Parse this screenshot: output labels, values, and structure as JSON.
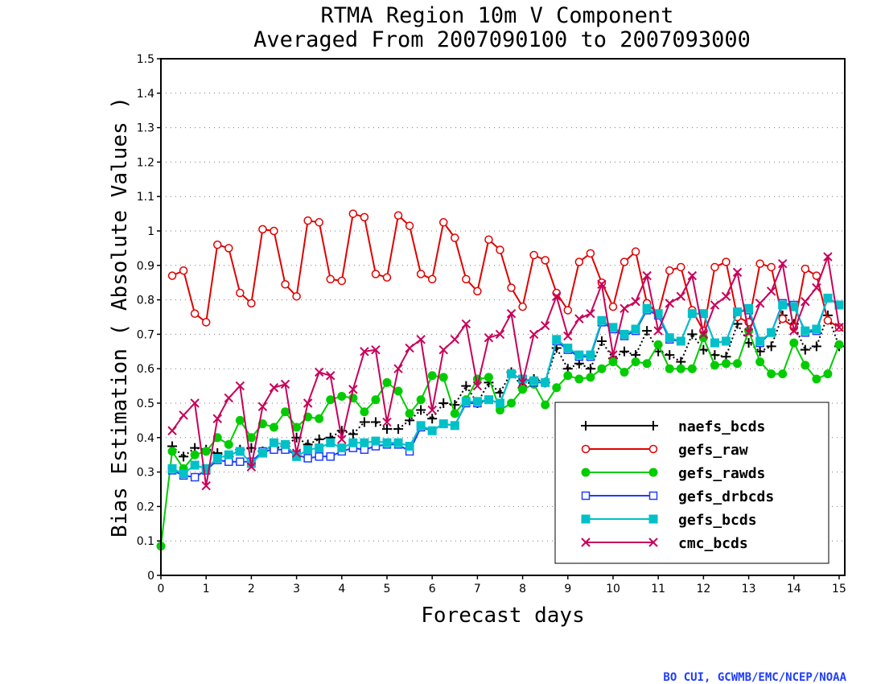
{
  "chart_data": {
    "type": "line",
    "title": "RTMA Region 10m V Component",
    "subtitle": "Averaged From 2007090100 to 2007093000",
    "xlabel": "Forecast days",
    "ylabel": "Bias Estimation ( Absolute Values )",
    "xlim": [
      0,
      15.125
    ],
    "ylim": [
      0,
      1.5
    ],
    "xticks": [
      "0",
      "1",
      "2",
      "3",
      "4",
      "5",
      "6",
      "7",
      "8",
      "9",
      "10",
      "11",
      "12",
      "13",
      "14",
      "15"
    ],
    "yticks": [
      "0",
      "0.1",
      "0.2",
      "0.3",
      "0.4",
      "0.5",
      "0.6",
      "0.7",
      "0.8",
      "0.9",
      "1",
      "1.1",
      "1.2",
      "1.3",
      "1.4",
      "1.5"
    ],
    "grid": true,
    "legend_position": "bottom-right",
    "credit": "BO CUI, GCWMB/EMC/NCEP/NOAA",
    "series": [
      {
        "name": "naefs_bcds",
        "color": "#000000",
        "marker": "plus",
        "dash": "dotted",
        "x": [
          0.25,
          0.5,
          0.75,
          1,
          1.25,
          1.5,
          1.75,
          2,
          2.25,
          2.5,
          2.75,
          3,
          3.25,
          3.5,
          3.75,
          4,
          4.25,
          4.5,
          4.75,
          5,
          5.25,
          5.5,
          5.75,
          6,
          6.25,
          6.5,
          6.75,
          7,
          7.25,
          7.5,
          7.75,
          8,
          8.25,
          8.5,
          8.75,
          9,
          9.25,
          9.5,
          9.75,
          10,
          10.25,
          10.5,
          10.75,
          11,
          11.25,
          11.5,
          11.75,
          12,
          12.25,
          12.5,
          12.75,
          13,
          13.25,
          13.5,
          13.75,
          14,
          14.25,
          14.5,
          14.75,
          15
        ],
        "values": [
          0.375,
          0.345,
          0.37,
          0.365,
          0.355,
          0.345,
          0.365,
          0.37,
          0.36,
          0.37,
          0.375,
          0.4,
          0.38,
          0.395,
          0.4,
          0.42,
          0.41,
          0.445,
          0.445,
          0.425,
          0.425,
          0.45,
          0.48,
          0.455,
          0.5,
          0.495,
          0.55,
          0.5,
          0.56,
          0.53,
          0.59,
          0.545,
          0.57,
          0.56,
          0.66,
          0.6,
          0.615,
          0.6,
          0.68,
          0.63,
          0.65,
          0.64,
          0.71,
          0.65,
          0.64,
          0.62,
          0.7,
          0.655,
          0.64,
          0.635,
          0.73,
          0.675,
          0.65,
          0.665,
          0.755,
          0.73,
          0.655,
          0.665,
          0.755,
          0.665
        ]
      },
      {
        "name": "gefs_raw",
        "color": "#e00000",
        "marker": "circle",
        "dash": "solid",
        "x": [
          0.25,
          0.5,
          0.75,
          1,
          1.25,
          1.5,
          1.75,
          2,
          2.25,
          2.5,
          2.75,
          3,
          3.25,
          3.5,
          3.75,
          4,
          4.25,
          4.5,
          4.75,
          5,
          5.25,
          5.5,
          5.75,
          6,
          6.25,
          6.5,
          6.75,
          7,
          7.25,
          7.5,
          7.75,
          8,
          8.25,
          8.5,
          8.75,
          9,
          9.25,
          9.5,
          9.75,
          10,
          10.25,
          10.5,
          10.75,
          11,
          11.25,
          11.5,
          11.75,
          12,
          12.25,
          12.5,
          12.75,
          13,
          13.25,
          13.5,
          13.75,
          14,
          14.25,
          14.5,
          14.75,
          15
        ],
        "values": [
          0.87,
          0.885,
          0.76,
          0.735,
          0.96,
          0.95,
          0.82,
          0.79,
          1.005,
          1.0,
          0.845,
          0.81,
          1.03,
          1.025,
          0.86,
          0.855,
          1.05,
          1.04,
          0.875,
          0.865,
          1.045,
          1.015,
          0.875,
          0.86,
          1.025,
          0.98,
          0.86,
          0.825,
          0.975,
          0.945,
          0.835,
          0.78,
          0.93,
          0.915,
          0.82,
          0.77,
          0.91,
          0.935,
          0.85,
          0.78,
          0.91,
          0.94,
          0.79,
          0.76,
          0.885,
          0.895,
          0.77,
          0.71,
          0.895,
          0.91,
          0.75,
          0.735,
          0.905,
          0.895,
          0.745,
          0.72,
          0.89,
          0.87,
          0.74,
          0.72
        ]
      },
      {
        "name": "gefs_rawds",
        "color": "#00cc00",
        "marker": "dot",
        "dash": "solid",
        "x": [
          0,
          0.25,
          0.5,
          0.75,
          1,
          1.25,
          1.5,
          1.75,
          2,
          2.25,
          2.5,
          2.75,
          3,
          3.25,
          3.5,
          3.75,
          4,
          4.25,
          4.5,
          4.75,
          5,
          5.25,
          5.5,
          5.75,
          6,
          6.25,
          6.5,
          6.75,
          7,
          7.25,
          7.5,
          7.75,
          8,
          8.25,
          8.5,
          8.75,
          9,
          9.25,
          9.5,
          9.75,
          10,
          10.25,
          10.5,
          10.75,
          11,
          11.25,
          11.5,
          11.75,
          12,
          12.25,
          12.5,
          12.75,
          13,
          13.25,
          13.5,
          13.75,
          14,
          14.25,
          14.5,
          14.75,
          15
        ],
        "values": [
          0.085,
          0.36,
          0.31,
          0.35,
          0.36,
          0.4,
          0.38,
          0.45,
          0.4,
          0.44,
          0.43,
          0.475,
          0.43,
          0.46,
          0.455,
          0.51,
          0.52,
          0.515,
          0.475,
          0.51,
          0.56,
          0.535,
          0.47,
          0.51,
          0.58,
          0.575,
          0.47,
          0.51,
          0.57,
          0.575,
          0.48,
          0.5,
          0.54,
          0.555,
          0.495,
          0.545,
          0.58,
          0.57,
          0.575,
          0.6,
          0.62,
          0.59,
          0.62,
          0.615,
          0.67,
          0.6,
          0.6,
          0.6,
          0.69,
          0.61,
          0.615,
          0.615,
          0.71,
          0.62,
          0.585,
          0.585,
          0.675,
          0.61,
          0.57,
          0.585,
          0.67
        ]
      },
      {
        "name": "gefs_drbcds",
        "color": "#1e3cff",
        "marker": "square-open",
        "dash": "solid",
        "x": [
          0.25,
          0.5,
          0.75,
          1,
          1.25,
          1.5,
          1.75,
          2,
          2.25,
          2.5,
          2.75,
          3,
          3.25,
          3.5,
          3.75,
          4,
          4.25,
          4.5,
          4.75,
          5,
          5.25,
          5.5,
          5.75,
          6,
          6.25,
          6.5,
          6.75,
          7,
          7.25,
          7.5,
          7.75,
          8,
          8.25,
          8.5,
          8.75,
          9,
          9.25,
          9.5,
          9.75,
          10,
          10.25,
          10.5,
          10.75,
          11,
          11.25,
          11.5,
          11.75,
          12,
          12.25,
          12.5,
          12.75,
          13,
          13.25,
          13.5,
          13.75,
          14,
          14.25,
          14.5,
          14.75,
          15
        ],
        "values": [
          0.305,
          0.29,
          0.285,
          0.305,
          0.335,
          0.33,
          0.33,
          0.33,
          0.36,
          0.365,
          0.365,
          0.35,
          0.34,
          0.345,
          0.345,
          0.36,
          0.37,
          0.365,
          0.375,
          0.38,
          0.38,
          0.36,
          0.43,
          0.42,
          0.44,
          0.435,
          0.5,
          0.5,
          0.51,
          0.5,
          0.585,
          0.57,
          0.56,
          0.56,
          0.68,
          0.655,
          0.635,
          0.635,
          0.735,
          0.715,
          0.695,
          0.71,
          0.77,
          0.755,
          0.685,
          0.68,
          0.76,
          0.76,
          0.675,
          0.68,
          0.765,
          0.77,
          0.675,
          0.705,
          0.79,
          0.785,
          0.705,
          0.71,
          0.805,
          0.785
        ]
      },
      {
        "name": "gefs_bcds",
        "color": "#00c0c8",
        "marker": "square",
        "dash": "solid",
        "x": [
          0.25,
          0.5,
          0.75,
          1,
          1.25,
          1.5,
          1.75,
          2,
          2.25,
          2.5,
          2.75,
          3,
          3.25,
          3.5,
          3.75,
          4,
          4.25,
          4.5,
          4.75,
          5,
          5.25,
          5.5,
          5.75,
          6,
          6.25,
          6.5,
          6.75,
          7,
          7.25,
          7.5,
          7.75,
          8,
          8.25,
          8.5,
          8.75,
          9,
          9.25,
          9.5,
          9.75,
          10,
          10.25,
          10.5,
          10.75,
          11,
          11.25,
          11.5,
          11.75,
          12,
          12.25,
          12.5,
          12.75,
          13,
          13.25,
          13.5,
          13.75,
          14,
          14.25,
          14.5,
          14.75,
          15
        ],
        "values": [
          0.31,
          0.295,
          0.32,
          0.31,
          0.34,
          0.35,
          0.36,
          0.325,
          0.355,
          0.385,
          0.38,
          0.345,
          0.365,
          0.37,
          0.385,
          0.37,
          0.385,
          0.385,
          0.39,
          0.385,
          0.385,
          0.375,
          0.435,
          0.42,
          0.44,
          0.435,
          0.505,
          0.505,
          0.51,
          0.5,
          0.585,
          0.57,
          0.565,
          0.56,
          0.685,
          0.66,
          0.64,
          0.64,
          0.74,
          0.72,
          0.7,
          0.715,
          0.775,
          0.76,
          0.69,
          0.68,
          0.76,
          0.76,
          0.675,
          0.68,
          0.765,
          0.775,
          0.68,
          0.705,
          0.785,
          0.78,
          0.71,
          0.715,
          0.805,
          0.785
        ]
      },
      {
        "name": "cmc_bcds",
        "color": "#c8005a",
        "marker": "x",
        "dash": "solid",
        "x": [
          0.25,
          0.5,
          0.75,
          1,
          1.25,
          1.5,
          1.75,
          2,
          2.25,
          2.5,
          2.75,
          3,
          3.25,
          3.5,
          3.75,
          4,
          4.25,
          4.5,
          4.75,
          5,
          5.25,
          5.5,
          5.75,
          6,
          6.25,
          6.5,
          6.75,
          7,
          7.25,
          7.5,
          7.75,
          8,
          8.25,
          8.5,
          8.75,
          9,
          9.25,
          9.5,
          9.75,
          10,
          10.25,
          10.5,
          10.75,
          11,
          11.25,
          11.5,
          11.75,
          12,
          12.25,
          12.5,
          12.75,
          13,
          13.25,
          13.5,
          13.75,
          14,
          14.25,
          14.5,
          14.75,
          15
        ],
        "values": [
          0.42,
          0.465,
          0.5,
          0.26,
          0.455,
          0.515,
          0.55,
          0.315,
          0.49,
          0.545,
          0.555,
          0.355,
          0.5,
          0.59,
          0.58,
          0.395,
          0.54,
          0.65,
          0.655,
          0.445,
          0.6,
          0.66,
          0.685,
          0.48,
          0.655,
          0.685,
          0.73,
          0.55,
          0.69,
          0.7,
          0.76,
          0.56,
          0.7,
          0.725,
          0.81,
          0.695,
          0.745,
          0.76,
          0.845,
          0.64,
          0.775,
          0.795,
          0.87,
          0.71,
          0.79,
          0.81,
          0.87,
          0.7,
          0.785,
          0.81,
          0.88,
          0.705,
          0.79,
          0.825,
          0.905,
          0.71,
          0.795,
          0.835,
          0.925,
          0.72
        ]
      }
    ]
  }
}
